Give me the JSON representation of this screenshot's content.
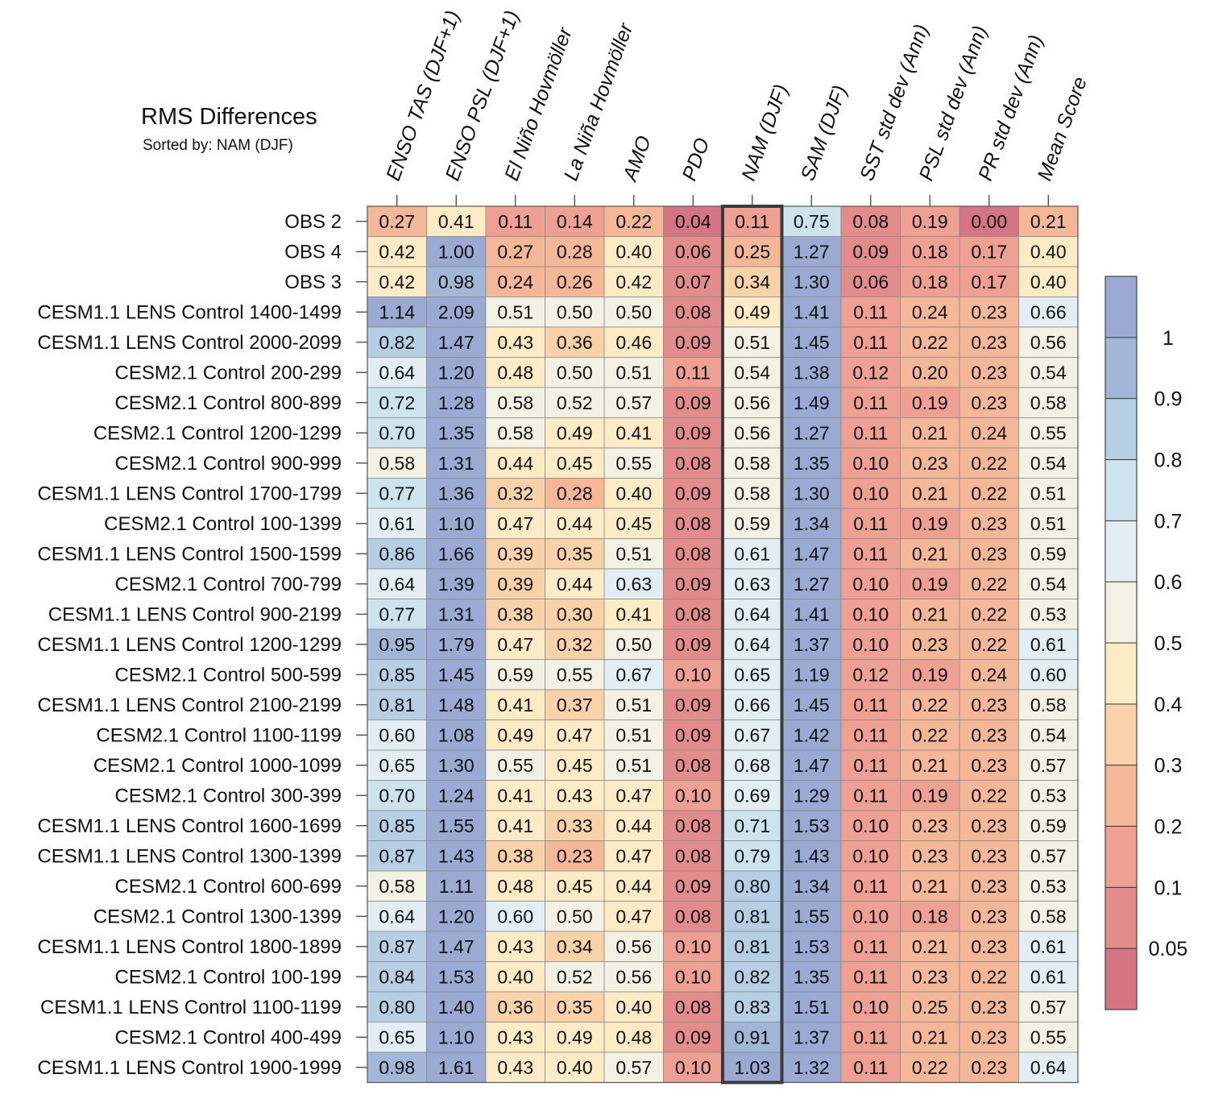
{
  "chart_data": {
    "type": "heatmap",
    "title": "RMS Differences",
    "subtitle": "Sorted by: NAM (DJF)",
    "highlight_column": "NAM (DJF)",
    "columns": [
      "ENSO TAS (DJF+1)",
      "ENSO PSL (DJF+1)",
      "El Niño Hovmöller",
      "La Niña Hovmöller",
      "AMO",
      "PDO",
      "NAM (DJF)",
      "SAM (DJF)",
      "SST std dev (Ann)",
      "PSL std dev (Ann)",
      "PR std dev (Ann)",
      "Mean Score"
    ],
    "rows": [
      "OBS 2",
      "OBS 4",
      "OBS 3",
      "CESM1.1 LENS Control 1400-1499",
      "CESM1.1 LENS Control 2000-2099",
      "CESM2.1 Control 200-299",
      "CESM2.1 Control 800-899",
      "CESM2.1 Control 1200-1299",
      "CESM2.1 Control 900-999",
      "CESM1.1 LENS Control 1700-1799",
      "CESM2.1 Control 100-1399",
      "CESM1.1 LENS Control 1500-1599",
      "CESM2.1 Control 700-799",
      "CESM1.1 LENS Control 900-2199",
      "CESM1.1 LENS Control 1200-1299",
      "CESM2.1 Control 500-599",
      "CESM1.1 LENS Control 2100-2199",
      "CESM2.1 Control 1100-1199",
      "CESM2.1 Control 1000-1099",
      "CESM2.1 Control 300-399",
      "CESM1.1 LENS Control 1600-1699",
      "CESM1.1 LENS Control 1300-1399",
      "CESM2.1 Control 600-699",
      "CESM2.1 Control 1300-1399",
      "CESM1.1 LENS Control 1800-1899",
      "CESM2.1 Control 100-199",
      "CESM1.1 LENS Control 1100-1199",
      "CESM2.1 Control 400-499",
      "CESM1.1 LENS Control 1900-1999"
    ],
    "values": [
      [
        "0.27",
        "0.41",
        "0.11",
        "0.14",
        "0.22",
        "0.04",
        "0.11",
        "0.75",
        "0.08",
        "0.19",
        "0.00",
        "0.21"
      ],
      [
        "0.42",
        "1.00",
        "0.27",
        "0.28",
        "0.40",
        "0.06",
        "0.25",
        "1.27",
        "0.09",
        "0.18",
        "0.17",
        "0.40"
      ],
      [
        "0.42",
        "0.98",
        "0.24",
        "0.26",
        "0.42",
        "0.07",
        "0.34",
        "1.30",
        "0.06",
        "0.18",
        "0.17",
        "0.40"
      ],
      [
        "1.14",
        "2.09",
        "0.51",
        "0.50",
        "0.50",
        "0.08",
        "0.49",
        "1.41",
        "0.11",
        "0.24",
        "0.23",
        "0.66"
      ],
      [
        "0.82",
        "1.47",
        "0.43",
        "0.36",
        "0.46",
        "0.09",
        "0.51",
        "1.45",
        "0.11",
        "0.22",
        "0.23",
        "0.56"
      ],
      [
        "0.64",
        "1.20",
        "0.48",
        "0.50",
        "0.51",
        "0.11",
        "0.54",
        "1.38",
        "0.12",
        "0.20",
        "0.23",
        "0.54"
      ],
      [
        "0.72",
        "1.28",
        "0.58",
        "0.52",
        "0.57",
        "0.09",
        "0.56",
        "1.49",
        "0.11",
        "0.19",
        "0.23",
        "0.58"
      ],
      [
        "0.70",
        "1.35",
        "0.58",
        "0.49",
        "0.41",
        "0.09",
        "0.56",
        "1.27",
        "0.11",
        "0.21",
        "0.24",
        "0.55"
      ],
      [
        "0.58",
        "1.31",
        "0.44",
        "0.45",
        "0.55",
        "0.08",
        "0.58",
        "1.35",
        "0.10",
        "0.23",
        "0.22",
        "0.54"
      ],
      [
        "0.77",
        "1.36",
        "0.32",
        "0.28",
        "0.40",
        "0.09",
        "0.58",
        "1.30",
        "0.10",
        "0.21",
        "0.22",
        "0.51"
      ],
      [
        "0.61",
        "1.10",
        "0.47",
        "0.44",
        "0.45",
        "0.08",
        "0.59",
        "1.34",
        "0.11",
        "0.19",
        "0.23",
        "0.51"
      ],
      [
        "0.86",
        "1.66",
        "0.39",
        "0.35",
        "0.51",
        "0.08",
        "0.61",
        "1.47",
        "0.11",
        "0.21",
        "0.23",
        "0.59"
      ],
      [
        "0.64",
        "1.39",
        "0.39",
        "0.44",
        "0.63",
        "0.09",
        "0.63",
        "1.27",
        "0.10",
        "0.19",
        "0.22",
        "0.54"
      ],
      [
        "0.77",
        "1.31",
        "0.38",
        "0.30",
        "0.41",
        "0.08",
        "0.64",
        "1.41",
        "0.10",
        "0.21",
        "0.22",
        "0.53"
      ],
      [
        "0.95",
        "1.79",
        "0.47",
        "0.32",
        "0.50",
        "0.09",
        "0.64",
        "1.37",
        "0.10",
        "0.23",
        "0.22",
        "0.61"
      ],
      [
        "0.85",
        "1.45",
        "0.59",
        "0.55",
        "0.67",
        "0.10",
        "0.65",
        "1.19",
        "0.12",
        "0.19",
        "0.24",
        "0.60"
      ],
      [
        "0.81",
        "1.48",
        "0.41",
        "0.37",
        "0.51",
        "0.09",
        "0.66",
        "1.45",
        "0.11",
        "0.22",
        "0.23",
        "0.58"
      ],
      [
        "0.60",
        "1.08",
        "0.49",
        "0.47",
        "0.51",
        "0.09",
        "0.67",
        "1.42",
        "0.11",
        "0.22",
        "0.23",
        "0.54"
      ],
      [
        "0.65",
        "1.30",
        "0.55",
        "0.45",
        "0.51",
        "0.08",
        "0.68",
        "1.47",
        "0.11",
        "0.21",
        "0.23",
        "0.57"
      ],
      [
        "0.70",
        "1.24",
        "0.41",
        "0.43",
        "0.47",
        "0.10",
        "0.69",
        "1.29",
        "0.11",
        "0.19",
        "0.22",
        "0.53"
      ],
      [
        "0.85",
        "1.55",
        "0.41",
        "0.33",
        "0.44",
        "0.08",
        "0.71",
        "1.53",
        "0.10",
        "0.23",
        "0.23",
        "0.59"
      ],
      [
        "0.87",
        "1.43",
        "0.38",
        "0.23",
        "0.47",
        "0.08",
        "0.79",
        "1.43",
        "0.10",
        "0.23",
        "0.23",
        "0.57"
      ],
      [
        "0.58",
        "1.11",
        "0.48",
        "0.45",
        "0.44",
        "0.09",
        "0.80",
        "1.34",
        "0.11",
        "0.21",
        "0.23",
        "0.53"
      ],
      [
        "0.64",
        "1.20",
        "0.60",
        "0.50",
        "0.47",
        "0.08",
        "0.81",
        "1.55",
        "0.10",
        "0.18",
        "0.23",
        "0.58"
      ],
      [
        "0.87",
        "1.47",
        "0.43",
        "0.34",
        "0.56",
        "0.10",
        "0.81",
        "1.53",
        "0.11",
        "0.21",
        "0.23",
        "0.61"
      ],
      [
        "0.84",
        "1.53",
        "0.40",
        "0.52",
        "0.56",
        "0.10",
        "0.82",
        "1.35",
        "0.11",
        "0.23",
        "0.22",
        "0.61"
      ],
      [
        "0.80",
        "1.40",
        "0.36",
        "0.35",
        "0.40",
        "0.08",
        "0.83",
        "1.51",
        "0.10",
        "0.25",
        "0.23",
        "0.57"
      ],
      [
        "0.65",
        "1.10",
        "0.43",
        "0.49",
        "0.48",
        "0.09",
        "0.91",
        "1.37",
        "0.11",
        "0.21",
        "0.23",
        "0.55"
      ],
      [
        "0.98",
        "1.61",
        "0.43",
        "0.40",
        "0.57",
        "0.10",
        "1.03",
        "1.32",
        "0.11",
        "0.22",
        "0.23",
        "0.64"
      ]
    ],
    "colorbar": {
      "levels": [
        0.05,
        0.1,
        0.2,
        0.3,
        0.4,
        0.5,
        0.6,
        0.7,
        0.8,
        0.9,
        1
      ],
      "tick_labels": [
        "0.05",
        "0.1",
        "0.2",
        "0.3",
        "0.4",
        "0.5",
        "0.6",
        "0.7",
        "0.8",
        "0.9",
        "1"
      ],
      "colors": [
        "#d57583",
        "#e28c8c",
        "#eea092",
        "#f4b898",
        "#fad2aa",
        "#fdebc5",
        "#f2f1e4",
        "#e3eef4",
        "#cde3ee",
        "#b6cfe4",
        "#a2b6d8",
        "#9aaad3"
      ]
    }
  }
}
